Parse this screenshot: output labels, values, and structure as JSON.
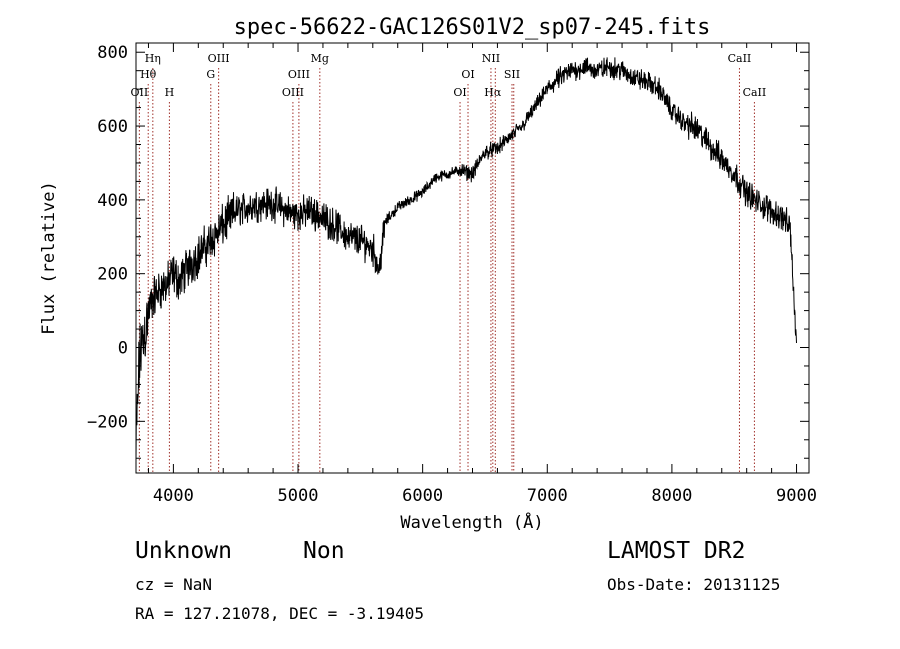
{
  "chart_data": {
    "type": "line",
    "title": "spec-56622-GAC126S01V2_sp07-245.fits",
    "xlabel": "Wavelength (Å)",
    "ylabel": "Flux (relative)",
    "xlim": [
      3700,
      9100
    ],
    "ylim": [
      -340,
      825
    ],
    "xticks": [
      4000,
      5000,
      6000,
      7000,
      8000,
      9000
    ],
    "yticks": [
      -200,
      0,
      200,
      400,
      600,
      800
    ],
    "grid": false,
    "line_color": "#000000",
    "marker_color": "#a0302a",
    "series": [
      {
        "x": [
          3700,
          3720,
          3740,
          3760,
          3790,
          3820,
          3850,
          3900,
          3950,
          4000,
          4050,
          4100,
          4150,
          4200,
          4300,
          4400,
          4500,
          4600,
          4700,
          4800,
          4900,
          5000,
          5100,
          5200,
          5300,
          5400,
          5500,
          5600,
          5650,
          5700,
          5800,
          5900,
          6000,
          6100,
          6200,
          6300,
          6400,
          6500,
          6600,
          6700,
          6800,
          6900,
          7000,
          7100,
          7200,
          7300,
          7400,
          7500,
          7600,
          7700,
          7800,
          7900,
          8000,
          8100,
          8200,
          8300,
          8400,
          8500,
          8600,
          8700,
          8800,
          8900,
          8950,
          9000
        ],
        "y": [
          -300,
          -80,
          0,
          20,
          80,
          120,
          140,
          160,
          170,
          200,
          180,
          210,
          230,
          250,
          290,
          330,
          370,
          380,
          390,
          390,
          370,
          360,
          370,
          350,
          330,
          300,
          290,
          270,
          210,
          340,
          380,
          400,
          420,
          460,
          470,
          480,
          470,
          530,
          540,
          570,
          600,
          650,
          700,
          730,
          750,
          760,
          750,
          760,
          750,
          730,
          720,
          700,
          640,
          610,
          590,
          550,
          510,
          470,
          420,
          390,
          370,
          350,
          320,
          0
        ]
      }
    ],
    "lines": [
      {
        "wavelength": 3727,
        "label": "OII",
        "row": 3
      },
      {
        "wavelength": 3798,
        "label": "Hθ",
        "row": 2
      },
      {
        "wavelength": 3835,
        "label": "Hη",
        "row": 1
      },
      {
        "wavelength": 3968,
        "label": "H",
        "row": 3
      },
      {
        "wavelength": 4300,
        "label": "G",
        "row": 2
      },
      {
        "wavelength": 4363,
        "label": "OIII",
        "row": 1
      },
      {
        "wavelength": 4959,
        "label": "OIII",
        "row": 3
      },
      {
        "wavelength": 5007,
        "label": "OIII",
        "row": 2
      },
      {
        "wavelength": 5175,
        "label": "Mg",
        "row": 1
      },
      {
        "wavelength": 6300,
        "label": "OI",
        "row": 3
      },
      {
        "wavelength": 6364,
        "label": "OI",
        "row": 2
      },
      {
        "wavelength": 6548,
        "label": "NII",
        "row": 1
      },
      {
        "wavelength": 6563,
        "label": "Hα",
        "row": 3
      },
      {
        "wavelength": 6583,
        "label": "",
        "row": 1
      },
      {
        "wavelength": 6717,
        "label": "SII",
        "row": 2
      },
      {
        "wavelength": 6731,
        "label": "",
        "row": 2
      },
      {
        "wavelength": 8542,
        "label": "CaII",
        "row": 1
      },
      {
        "wavelength": 8662,
        "label": "CaII",
        "row": 3
      }
    ]
  },
  "footer": {
    "obj_class": "Unknown",
    "obj_subclass": "Non",
    "survey": "LAMOST DR2",
    "redshift": "cz = NaN",
    "obs_date": "Obs-Date: 20131125",
    "coords": "RA = 127.21078, DEC =  -3.19405"
  }
}
